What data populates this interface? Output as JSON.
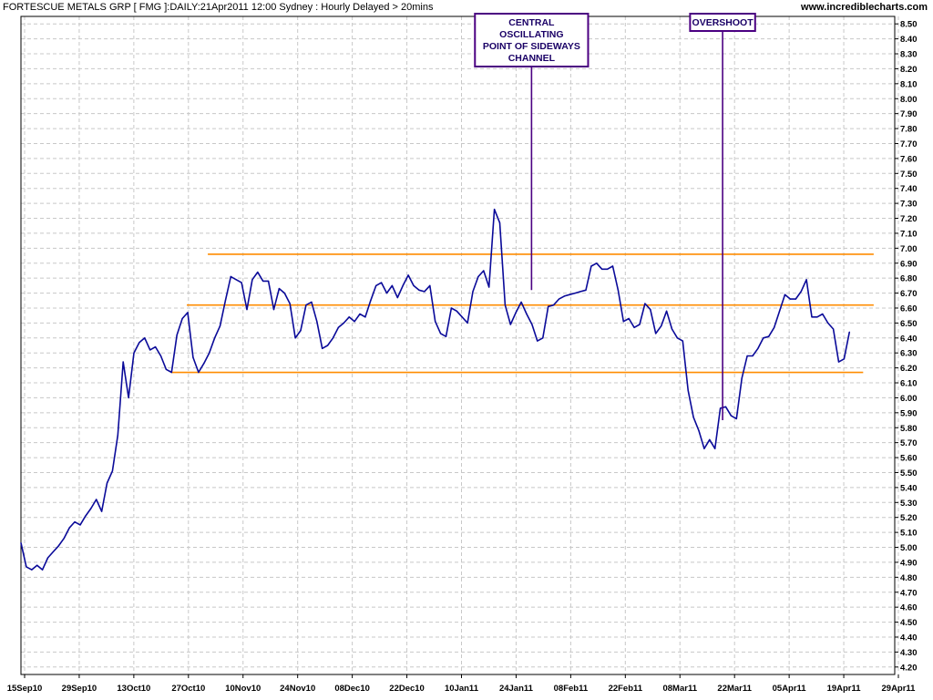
{
  "header": {
    "title": "FORTESCUE METALS GRP [ FMG ]:DAILY:21Apr2011 12:00 Sydney : Hourly Delayed > 20mins",
    "site": "www.incrediblecharts.com"
  },
  "colors": {
    "price_line": "#0a0a99",
    "channel_line": "#ff8c00",
    "annotation": "#4b0082",
    "grid": "#c8c8c8"
  },
  "chart_data": {
    "type": "line",
    "title": "FORTESCUE METALS GRP [ FMG ]:DAILY:21Apr2011 12:00 Sydney : Hourly Delayed > 20mins",
    "xlabel": "",
    "ylabel": "",
    "x_ticks": [
      "15Sep10",
      "29Sep10",
      "13Oct10",
      "27Oct10",
      "10Nov10",
      "24Nov10",
      "08Dec10",
      "22Dec10",
      "10Jan11",
      "24Jan11",
      "08Feb11",
      "22Feb11",
      "08Mar11",
      "22Mar11",
      "05Apr11",
      "19Apr11",
      "29Apr11"
    ],
    "y_ticks": [
      4.2,
      4.3,
      4.4,
      4.5,
      4.6,
      4.7,
      4.8,
      4.9,
      5.0,
      5.1,
      5.2,
      5.3,
      5.4,
      5.5,
      5.6,
      5.7,
      5.8,
      5.9,
      6.0,
      6.1,
      6.2,
      6.3,
      6.4,
      6.5,
      6.6,
      6.7,
      6.8,
      6.9,
      7.0,
      7.1,
      7.2,
      7.3,
      7.4,
      7.5,
      7.6,
      7.7,
      7.8,
      7.9,
      8.0,
      8.1,
      8.2,
      8.3,
      8.4,
      8.5
    ],
    "ylim": [
      4.15,
      8.55
    ],
    "xlim": [
      0,
      166
    ],
    "grid": true,
    "series": [
      {
        "values": [
          5.03,
          4.87,
          4.85,
          4.88,
          4.85,
          4.93,
          4.97,
          5.01,
          5.06,
          5.13,
          5.17,
          5.15,
          5.21,
          5.26,
          5.32,
          5.24,
          5.43,
          5.51,
          5.75,
          6.24,
          6.0,
          6.3,
          6.37,
          6.4,
          6.32,
          6.34,
          6.28,
          6.19,
          6.17,
          6.42,
          6.53,
          6.57,
          6.27,
          6.17,
          6.23,
          6.3,
          6.4,
          6.48,
          6.65,
          6.81,
          6.79,
          6.77,
          6.59,
          6.79,
          6.84,
          6.78,
          6.78,
          6.59,
          6.73,
          6.7,
          6.63,
          6.4,
          6.45,
          6.62,
          6.64,
          6.51,
          6.33,
          6.35,
          6.4,
          6.47,
          6.5,
          6.54,
          6.51,
          6.56,
          6.54,
          6.65,
          6.75,
          6.77,
          6.7,
          6.75,
          6.67,
          6.75,
          6.82,
          6.75,
          6.72,
          6.71,
          6.75,
          6.51,
          6.43,
          6.41,
          6.6,
          6.58,
          6.54,
          6.5,
          6.71,
          6.81,
          6.85,
          6.74,
          7.26,
          7.17,
          6.62,
          6.49,
          6.57,
          6.64,
          6.56,
          6.49,
          6.38,
          6.4,
          6.61,
          6.62,
          6.66,
          6.68,
          6.69,
          6.7,
          6.71,
          6.72,
          6.88,
          6.9,
          6.86,
          6.86,
          6.88,
          6.72,
          6.51,
          6.53,
          6.47,
          6.49,
          6.63,
          6.59,
          6.43,
          6.48,
          6.58,
          6.46,
          6.4,
          6.38,
          6.05,
          5.87,
          5.78,
          5.66,
          5.72,
          5.66,
          5.93,
          5.94,
          5.88,
          5.86,
          6.13,
          6.28,
          6.28,
          6.33,
          6.4,
          6.41,
          6.47,
          6.58,
          6.69,
          6.66,
          6.66,
          6.71,
          6.79,
          6.54,
          6.54,
          6.56,
          6.5,
          6.46,
          6.24,
          6.26,
          6.44
        ],
        "x_start": 0,
        "x_end": 157.4
      }
    ],
    "channel_lines": [
      {
        "y": 6.96,
        "x_from": 35.5,
        "x_to": 162
      },
      {
        "y": 6.62,
        "x_from": 31.5,
        "x_to": 162
      },
      {
        "y": 6.17,
        "x_from": 28.5,
        "x_to": 160
      }
    ],
    "annotations": [
      {
        "lines": [
          "CENTRAL",
          "OSCILLATING",
          "POINT OF SIDEWAYS",
          "CHANNEL"
        ],
        "x": 97,
        "y": 6.72
      },
      {
        "lines": [
          "OVERSHOOT"
        ],
        "x": 133.3,
        "y": 5.85
      }
    ]
  }
}
